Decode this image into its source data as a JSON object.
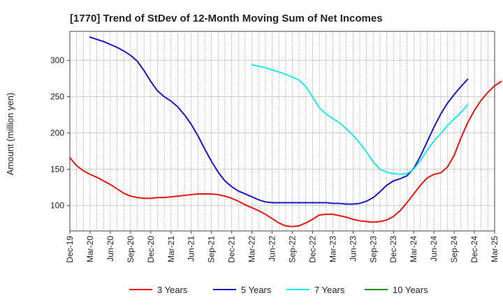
{
  "chart_data": {
    "type": "line",
    "title": "[1770]  Trend of StDev of 12-Month Moving Sum of Net Incomes",
    "xlabel": "",
    "ylabel": "Amount (million yen)",
    "x_tick_labels": [
      "Dec-19",
      "Mar-20",
      "Jun-20",
      "Sep-20",
      "Dec-20",
      "Mar-21",
      "Jun-21",
      "Sep-21",
      "Dec-21",
      "Mar-22",
      "Jun-22",
      "Sep-22",
      "Dec-22",
      "Mar-23",
      "Jun-23",
      "Sep-23",
      "Dec-23",
      "Mar-24",
      "Jun-24",
      "Sep-24",
      "Dec-24",
      "Mar-25"
    ],
    "y_ticks": [
      100,
      150,
      200,
      250,
      300
    ],
    "ylim": [
      65,
      340
    ],
    "grid": true,
    "legend_position": "bottom",
    "x_start": "2019-12",
    "series": [
      {
        "name": "3 Years",
        "color": "#e8140e",
        "start_index": 0,
        "values": [
          166,
          155,
          148,
          143,
          139,
          134,
          129,
          123,
          117,
          113,
          111,
          110,
          110,
          111,
          111,
          112,
          113,
          114,
          115,
          116,
          116,
          116,
          115,
          113,
          110,
          106,
          101,
          97,
          93,
          88,
          82,
          76,
          72,
          71,
          72,
          76,
          81,
          87,
          88,
          88,
          86,
          84,
          81,
          79,
          78,
          77,
          78,
          80,
          85,
          93,
          104,
          116,
          128,
          138,
          143,
          145,
          153,
          169,
          193,
          214,
          231,
          245,
          256,
          265,
          271
        ]
      },
      {
        "name": "5 Years",
        "color": "#1717c7",
        "start_index": 3,
        "values": [
          332,
          329,
          326,
          322,
          318,
          313,
          307,
          299,
          286,
          271,
          258,
          250,
          244,
          236,
          225,
          212,
          196,
          178,
          161,
          146,
          134,
          126,
          120,
          116,
          112,
          108,
          105,
          104,
          104,
          104,
          104,
          104,
          104,
          104,
          104,
          104,
          103,
          103,
          102,
          102,
          103,
          106,
          111,
          119,
          128,
          134,
          137,
          141,
          151,
          168,
          188,
          208,
          226,
          241,
          253,
          264,
          274
        ]
      },
      {
        "name": "7 Years",
        "color": "#1de8e8",
        "start_index": 27,
        "values": [
          294,
          292,
          290,
          287,
          284,
          281,
          277,
          273,
          264,
          250,
          235,
          226,
          220,
          214,
          206,
          197,
          186,
          174,
          160,
          150,
          146,
          144,
          143,
          144,
          150,
          162,
          176,
          189,
          199,
          210,
          219,
          228,
          239
        ]
      },
      {
        "name": "10 Years",
        "color": "#1c8c1c",
        "start_index": 0,
        "values": []
      }
    ]
  }
}
